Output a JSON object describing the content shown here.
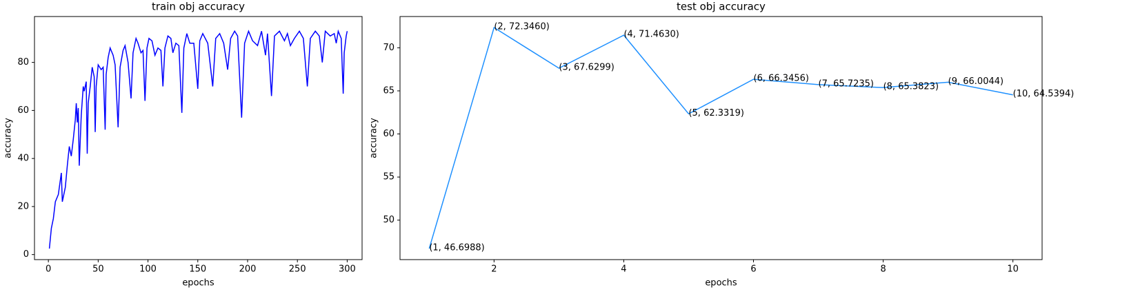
{
  "chart_data": [
    {
      "type": "line",
      "title": "train obj accuracy",
      "xlabel": "epochs",
      "ylabel": "accuracy",
      "color": "#0000ff",
      "x": [
        1,
        3,
        5,
        7,
        10,
        13,
        14,
        17,
        19,
        21,
        23,
        25,
        27,
        28,
        29,
        30,
        31,
        33,
        35,
        36,
        38,
        39,
        40,
        42,
        44,
        46,
        47,
        48,
        50,
        53,
        55,
        57,
        58,
        60,
        62,
        65,
        67,
        70,
        72,
        75,
        77,
        80,
        83,
        85,
        88,
        90,
        93,
        95,
        97,
        99,
        101,
        104,
        107,
        110,
        113,
        115,
        117,
        120,
        123,
        125,
        128,
        131,
        134,
        136,
        139,
        142,
        146,
        150,
        152,
        155,
        160,
        165,
        168,
        172,
        176,
        180,
        183,
        187,
        190,
        194,
        197,
        201,
        205,
        210,
        214,
        218,
        220,
        224,
        227,
        232,
        237,
        240,
        243,
        247,
        252,
        256,
        260,
        263,
        268,
        272,
        275,
        278,
        283,
        287,
        289,
        291,
        294,
        296,
        297,
        299,
        300
      ],
      "values": [
        2.5,
        11,
        15,
        22,
        25,
        34,
        22,
        28,
        37,
        45,
        41,
        48,
        56,
        63,
        55,
        61,
        37,
        58,
        70,
        68,
        72,
        42,
        63,
        70,
        78,
        74,
        51,
        70,
        79,
        77,
        78,
        52,
        75,
        82,
        86,
        83,
        79,
        53,
        78,
        85,
        87,
        80,
        65,
        84,
        90,
        88,
        84,
        85,
        64,
        86,
        90,
        89,
        83,
        86,
        85,
        70,
        86,
        91,
        90,
        84,
        88,
        87,
        59,
        86,
        92,
        88,
        88,
        69,
        89,
        92,
        88,
        70,
        90,
        92,
        88,
        77,
        90,
        93,
        91,
        57,
        88,
        93,
        89,
        87,
        93,
        83,
        92,
        66,
        91,
        93,
        89,
        92,
        87,
        90,
        93,
        90,
        70,
        90,
        93,
        91,
        80,
        93,
        91,
        92,
        88,
        93,
        90,
        67,
        84,
        91,
        93
      ],
      "xlim": [
        -13.95,
        314.95
      ],
      "ylim": [
        -2.1,
        99.1
      ],
      "xticks": [
        0,
        50,
        100,
        150,
        200,
        250,
        300
      ],
      "yticks": [
        0,
        20,
        40,
        60,
        80
      ]
    },
    {
      "type": "line",
      "title": "test obj accuracy",
      "xlabel": "epochs",
      "ylabel": "accuracy",
      "color": "#1e90ff",
      "x": [
        1,
        2,
        3,
        4,
        5,
        6,
        7,
        8,
        9,
        10
      ],
      "values": [
        46.6988,
        72.346,
        67.6299,
        71.463,
        62.3319,
        66.3456,
        65.7235,
        65.3823,
        66.0044,
        64.5394
      ],
      "value_labels": [
        "(1, 46.6988)",
        "(2, 72.3460)",
        "(3, 67.6299)",
        "(4, 71.4630)",
        "(5, 62.3319)",
        "(6, 66.3456)",
        "(7, 65.7235)",
        "(8, 65.3823)",
        "(9, 66.0044)",
        "(10, 64.5394)"
      ],
      "xlim": [
        0.55,
        10.45
      ],
      "ylim": [
        45.417,
        73.628
      ],
      "xticks": [
        2,
        4,
        6,
        8,
        10
      ],
      "yticks": [
        50,
        55,
        60,
        65,
        70
      ]
    }
  ]
}
